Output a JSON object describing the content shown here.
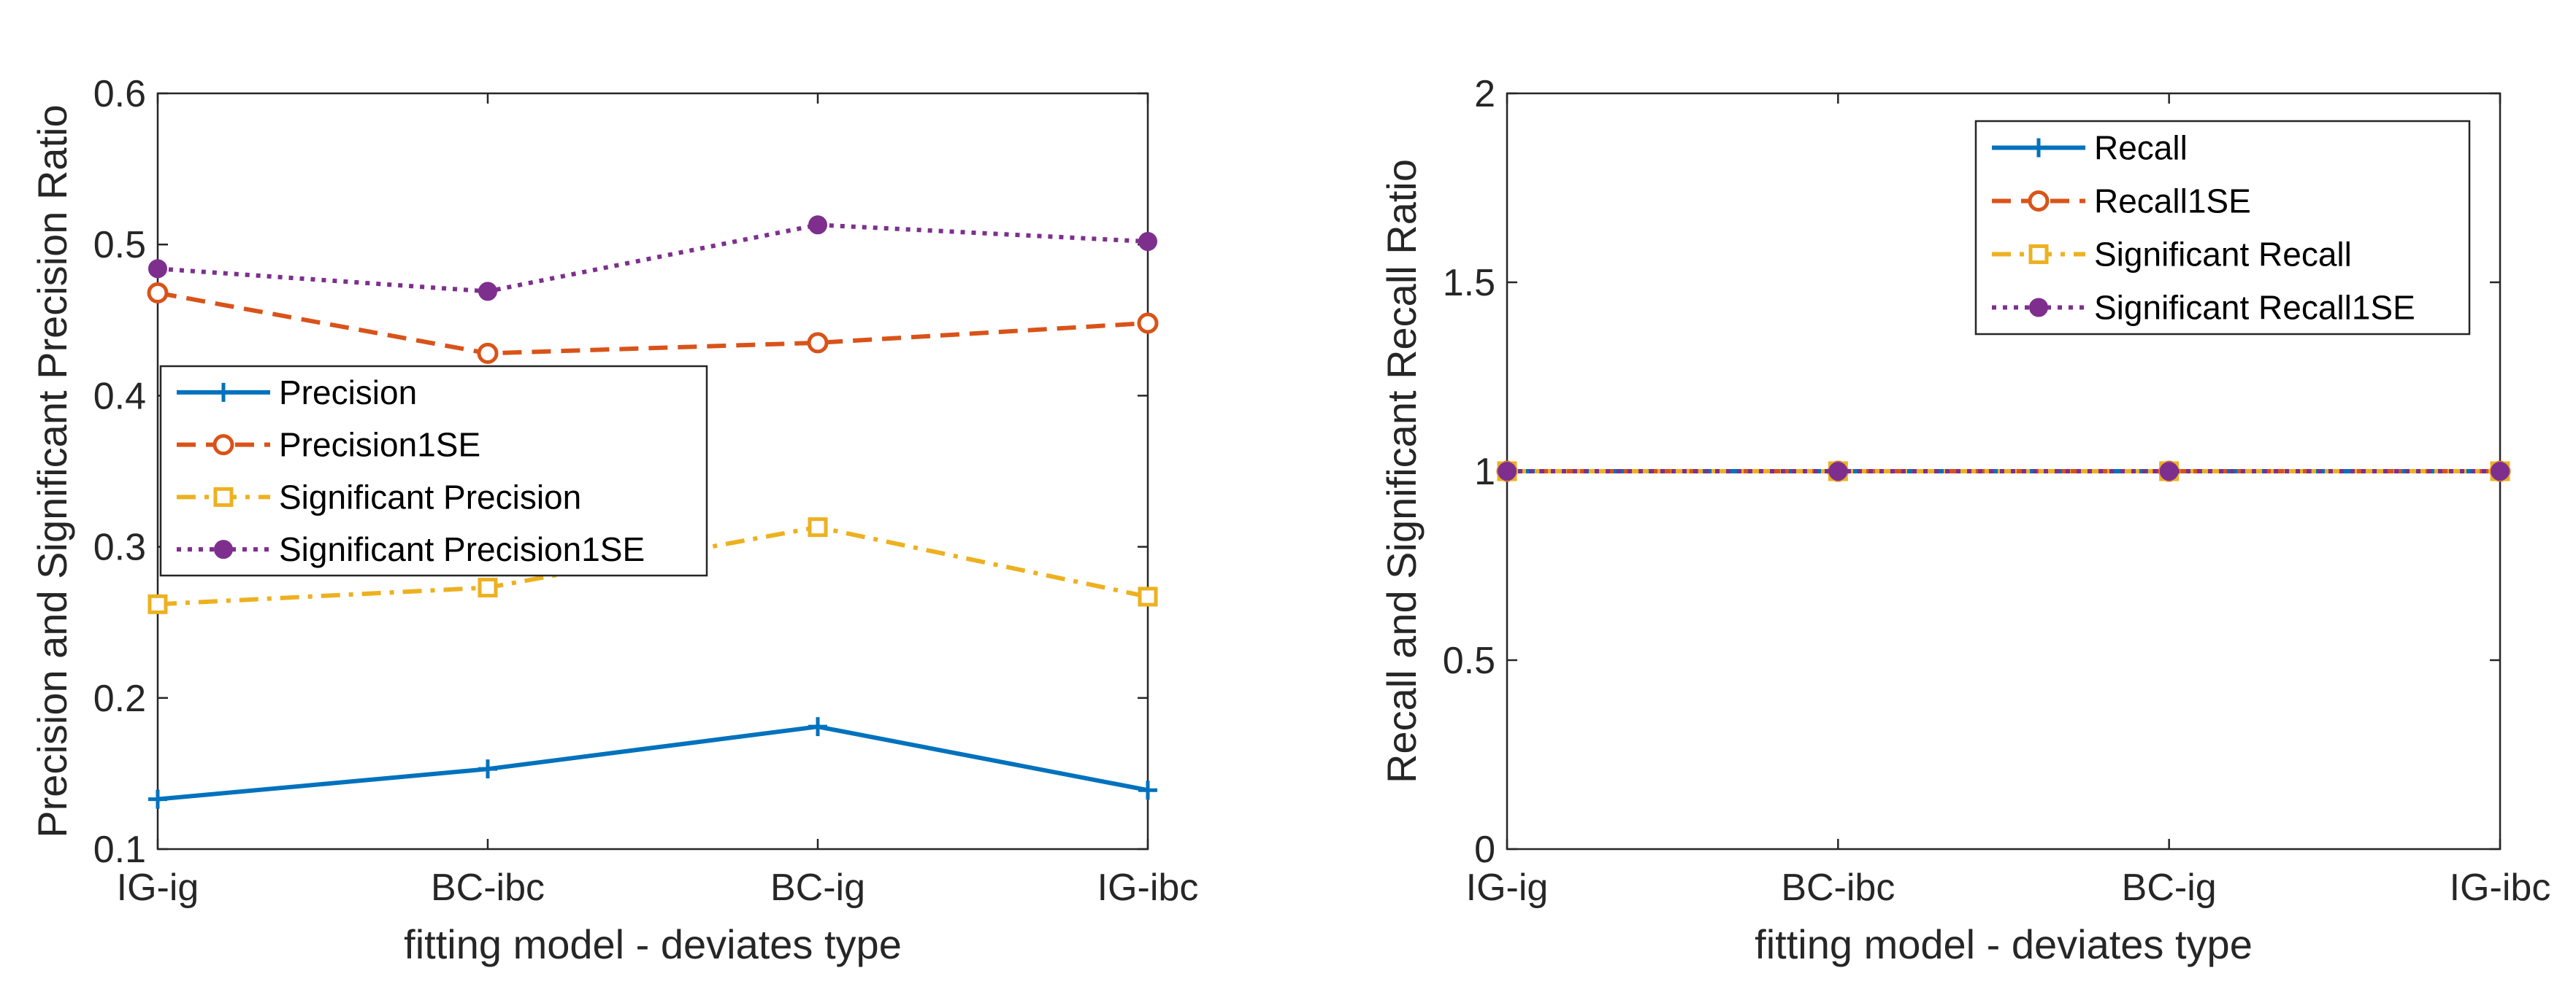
{
  "chart_data": [
    {
      "type": "line",
      "categories": [
        "IG-ig",
        "BC-ibc",
        "BC-ig",
        "IG-ibc"
      ],
      "xlabel": "fitting model - deviates type",
      "ylabel": "Precision and Significant Precision Ratio",
      "ylim": [
        0.1,
        0.6
      ],
      "yticks": [
        "0.1",
        "0.2",
        "0.3",
        "0.4",
        "0.5",
        "0.6"
      ],
      "legend_position": "center-left",
      "grid": false,
      "series": [
        {
          "name": "Precision",
          "values": [
            0.133,
            0.153,
            0.181,
            0.139
          ],
          "color": "#0072BD",
          "dash": "solid",
          "marker": "plus"
        },
        {
          "name": "Precision1SE",
          "values": [
            0.468,
            0.428,
            0.435,
            0.448
          ],
          "color": "#D95319",
          "dash": "dashed",
          "marker": "circle"
        },
        {
          "name": "Significant Precision",
          "values": [
            0.262,
            0.273,
            0.313,
            0.267
          ],
          "color": "#EDB120",
          "dash": "dashdot",
          "marker": "square"
        },
        {
          "name": "Significant Precision1SE",
          "values": [
            0.484,
            0.469,
            0.513,
            0.502
          ],
          "color": "#7E2F8E",
          "dash": "dotted",
          "marker": "dot"
        }
      ]
    },
    {
      "type": "line",
      "categories": [
        "IG-ig",
        "BC-ibc",
        "BC-ig",
        "IG-ibc"
      ],
      "xlabel": "fitting model - deviates type",
      "ylabel": "Recall and Significant Recall Ratio",
      "ylim": [
        0,
        2
      ],
      "yticks": [
        "0",
        "0.5",
        "1",
        "1.5",
        "2"
      ],
      "legend_position": "top-right",
      "grid": false,
      "series": [
        {
          "name": "Recall",
          "values": [
            1,
            1,
            1,
            1
          ],
          "color": "#0072BD",
          "dash": "solid",
          "marker": "plus"
        },
        {
          "name": "Recall1SE",
          "values": [
            1,
            1,
            1,
            1
          ],
          "color": "#D95319",
          "dash": "dashed",
          "marker": "circle"
        },
        {
          "name": "Significant Recall",
          "values": [
            1,
            1,
            1,
            1
          ],
          "color": "#EDB120",
          "dash": "dashdot",
          "marker": "square"
        },
        {
          "name": "Significant Recall1SE",
          "values": [
            1,
            1,
            1,
            1
          ],
          "color": "#7E2F8E",
          "dash": "dotted",
          "marker": "dot"
        }
      ]
    }
  ]
}
